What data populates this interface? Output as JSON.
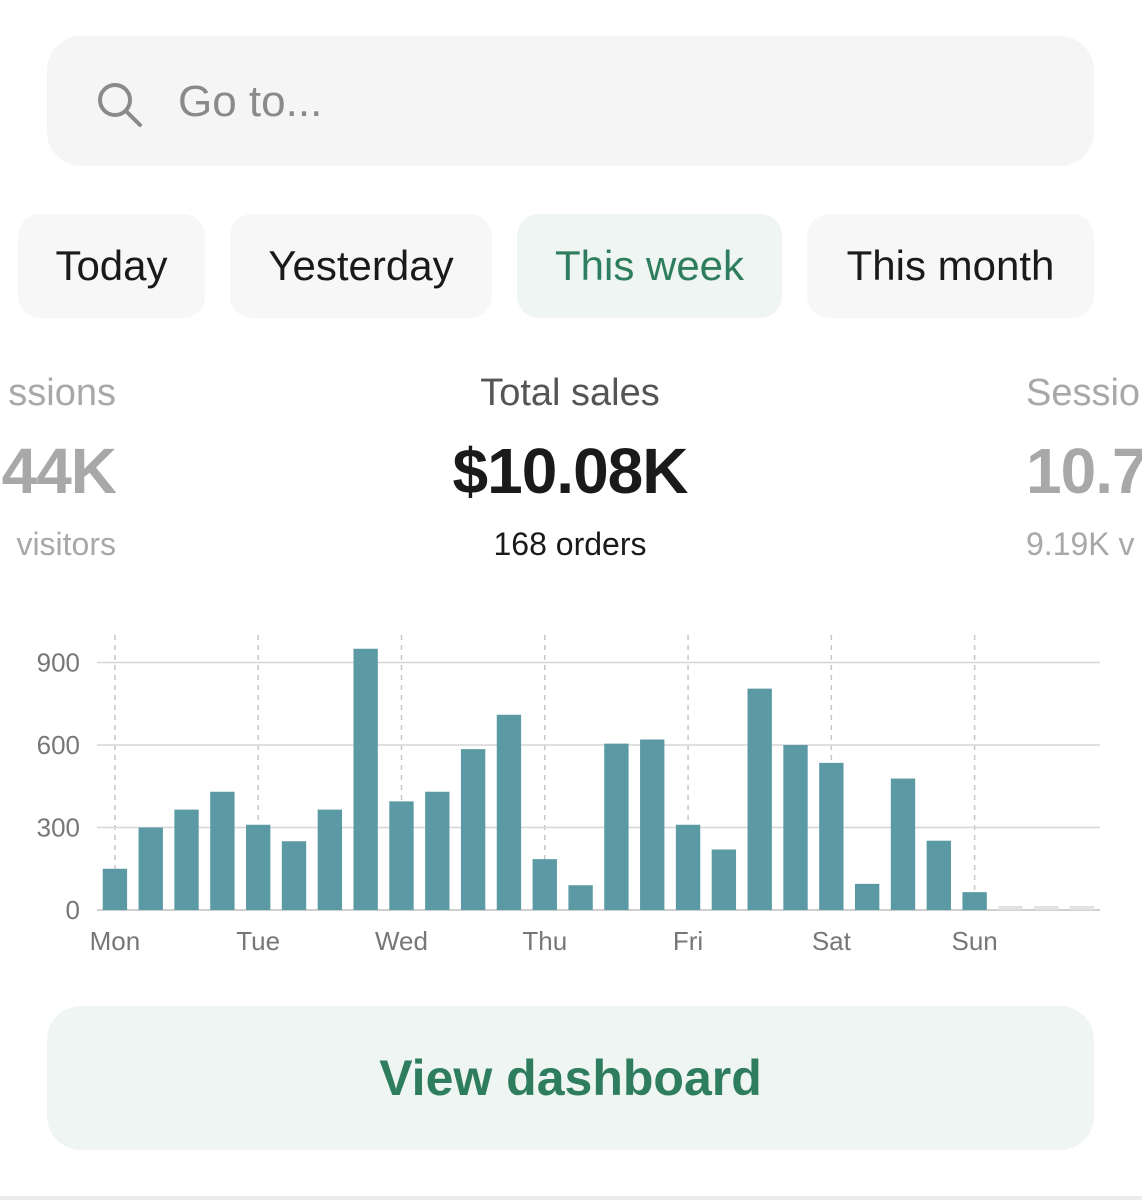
{
  "search": {
    "placeholder": "Go to...",
    "icon": "search-icon"
  },
  "tabs": [
    {
      "label": "Today",
      "active": false
    },
    {
      "label": "Yesterday",
      "active": false
    },
    {
      "label": "This week",
      "active": true
    },
    {
      "label": "This month",
      "active": false
    }
  ],
  "metrics": {
    "left": {
      "label": "ssions",
      "value": "44K",
      "sub": "visitors"
    },
    "center": {
      "label": "Total sales",
      "value": "$10.08K",
      "sub": "168 orders"
    },
    "right": {
      "label": "Sessio",
      "value": "10.7",
      "sub": "9.19K v"
    }
  },
  "colors": {
    "accent": "#2e7d5e",
    "accent_bg": "#eef5f2",
    "bar": "#5b9aa5",
    "search_bg": "#f5f5f5"
  },
  "chart_data": {
    "type": "bar",
    "x_labels": [
      "Mon",
      "Tue",
      "Wed",
      "Thu",
      "Fri",
      "Sat",
      "Sun"
    ],
    "values": [
      150,
      300,
      365,
      430,
      310,
      250,
      365,
      950,
      395,
      430,
      585,
      710,
      185,
      90,
      605,
      620,
      310,
      220,
      805,
      600,
      535,
      95,
      478,
      252,
      65
    ],
    "empty_slots": 3,
    "ylim": [
      0,
      1000
    ],
    "y_ticks": [
      "0",
      "300",
      "600",
      "900"
    ],
    "grid": true,
    "title": "",
    "xlabel": "",
    "ylabel": ""
  },
  "cta": {
    "label": "View dashboard"
  }
}
